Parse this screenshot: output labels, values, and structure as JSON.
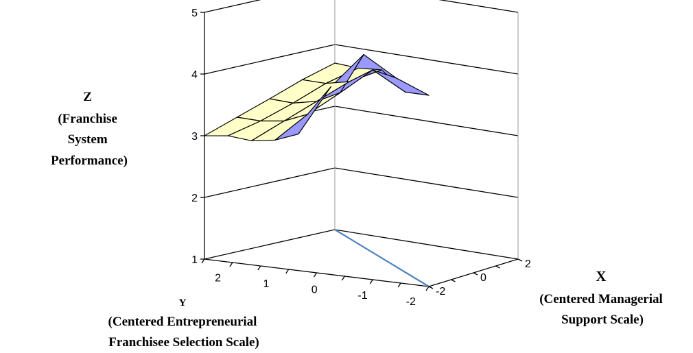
{
  "chart_data": {
    "type": "surface",
    "z_axis": {
      "label_lines": [
        "Z",
        "(Franchise",
        "System",
        "Performance)"
      ],
      "ticks": [
        "1",
        "2",
        "3",
        "4",
        "5"
      ],
      "range": [
        1,
        5
      ]
    },
    "y_axis": {
      "label_lines": [
        "Y",
        "(Centered Entrepreneurial",
        "Franchisee Selection Scale)"
      ],
      "ticks": [
        "2",
        "1",
        "0",
        "-1",
        "-2"
      ],
      "range": [
        -2,
        2
      ]
    },
    "x_axis": {
      "label_lines": [
        "X",
        "(Centered Managerial",
        "Support  Scale)"
      ],
      "ticks": [
        "-2",
        "0",
        "2"
      ],
      "range": [
        -2,
        2
      ]
    },
    "grid_y": [
      2,
      1,
      0,
      -1,
      -2
    ],
    "grid_x": [
      -2,
      -1,
      0,
      1,
      2
    ],
    "z_values": [
      [
        3.0,
        3.23,
        3.38,
        3.62,
        3.95
      ],
      [
        3.18,
        3.35,
        3.58,
        3.92,
        4.6
      ],
      [
        3.36,
        3.52,
        3.78,
        4.15,
        5.0
      ],
      [
        3.55,
        3.72,
        3.98,
        4.4,
        4.5
      ],
      [
        3.7,
        3.85,
        4.05,
        3.92,
        4.1
      ]
    ],
    "colors": {
      "below_4": "#ffffc8",
      "above_4": "#9999ff",
      "floor_line": "#4f81bd"
    }
  }
}
